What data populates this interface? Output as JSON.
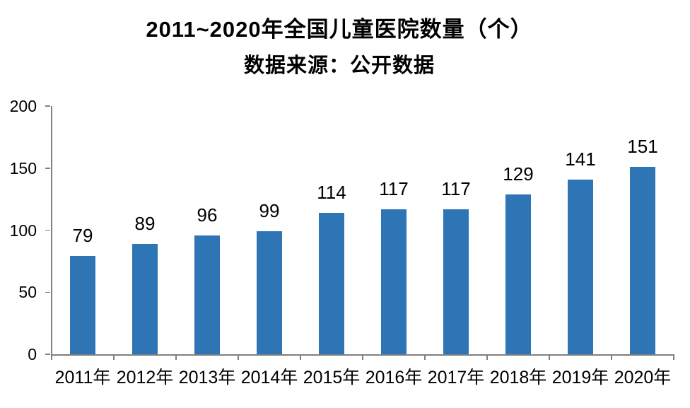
{
  "header": {
    "title": "2011~2020年全国儿童医院数量（个）",
    "subtitle": "数据来源：公开数据"
  },
  "chart_data": {
    "type": "bar",
    "title": "2011~2020年全国儿童医院数量（个）",
    "subtitle": "数据来源：公开数据",
    "categories": [
      "2011年",
      "2012年",
      "2013年",
      "2014年",
      "2015年",
      "2016年",
      "2017年",
      "2018年",
      "2019年",
      "2020年"
    ],
    "values": [
      79,
      89,
      96,
      99,
      114,
      117,
      117,
      129,
      141,
      151
    ],
    "data_labels": [
      "79",
      "89",
      "96",
      "99",
      "114",
      "117",
      "117",
      "129",
      "141",
      "151"
    ],
    "xlabel": "",
    "ylabel": "",
    "ylim": [
      0,
      200
    ],
    "y_ticks": [
      0,
      50,
      100,
      150,
      200
    ],
    "grid": false,
    "legend": "none",
    "data_labels_visible": true,
    "colors": {
      "bar": "#2E75B6",
      "axis": "#808080",
      "text": "#000000",
      "background": "#FFFFFF"
    }
  }
}
